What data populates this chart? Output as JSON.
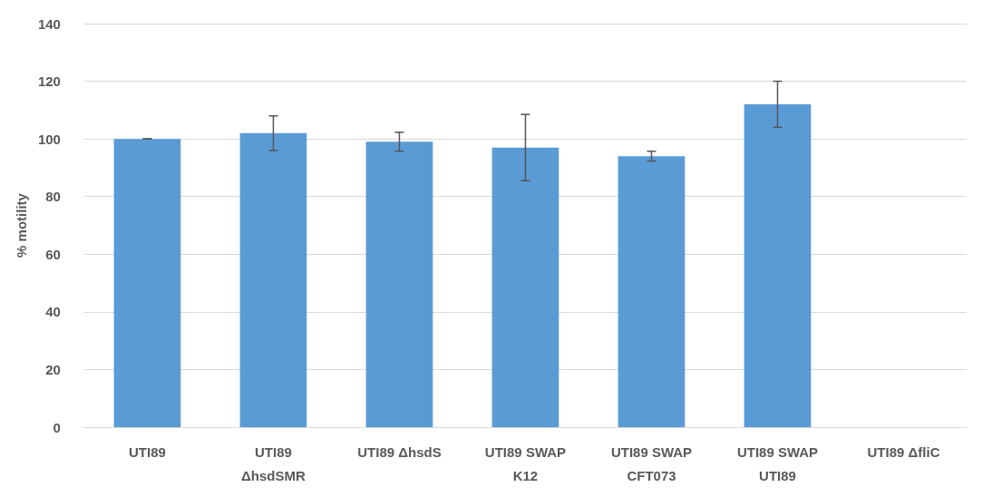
{
  "chart_data": {
    "type": "bar",
    "ylabel": "% motility",
    "categories": [
      "UTI89",
      "UTI89\nΔhsdSMR",
      "UTI89 ΔhsdS",
      "UTI89 SWAP\nK12",
      "UTI89 SWAP\nCFT073",
      "UTI89 SWAP\nUTI89",
      "UTI89 ΔfliC"
    ],
    "values": [
      100,
      102,
      99,
      97,
      94,
      112,
      0
    ],
    "errors": [
      0,
      6,
      3.3,
      11.5,
      1.7,
      8,
      null
    ],
    "color": "#5b9bd5",
    "ylim": [
      0,
      140
    ],
    "yticks": [
      0,
      20,
      40,
      60,
      80,
      100,
      120,
      140
    ],
    "grid": "y"
  }
}
